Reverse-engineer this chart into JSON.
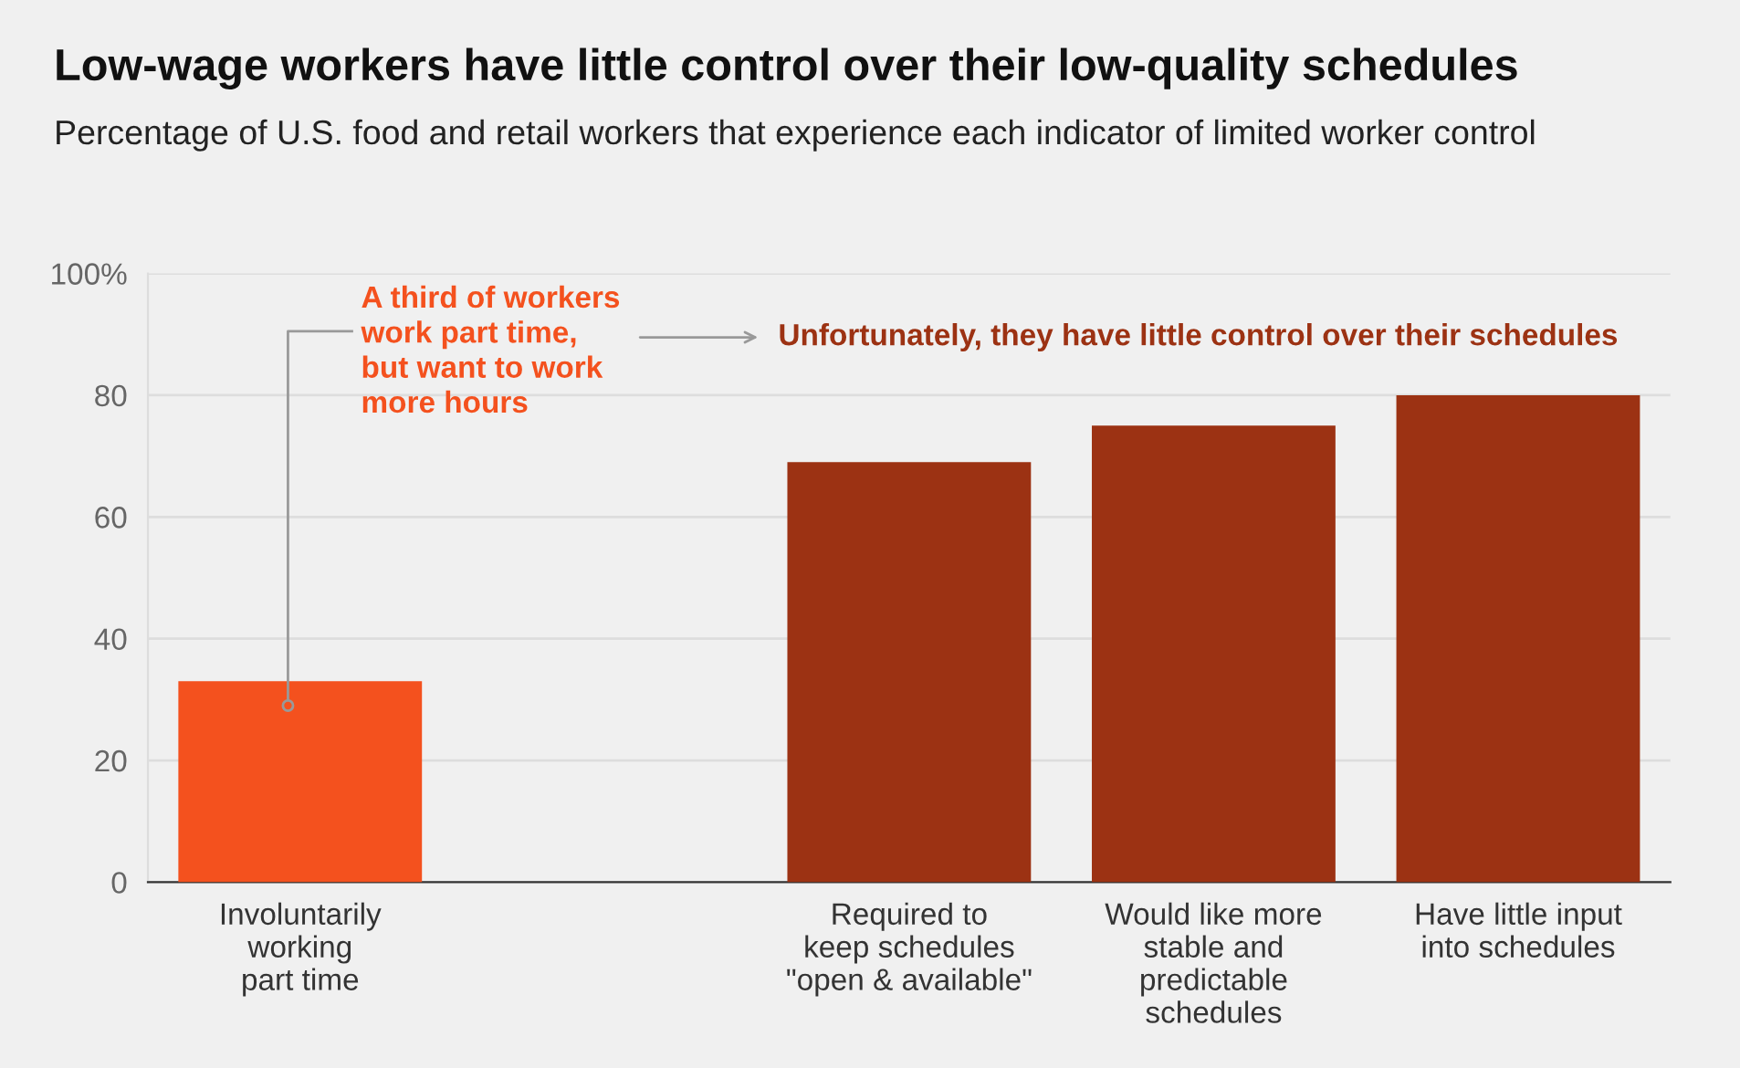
{
  "chart_data": {
    "type": "bar",
    "title": "Low-wage workers have little control over their low-quality schedules",
    "subtitle": "Percentage of U.S. food and retail workers that experience each indicator of limited worker control",
    "categories": [
      "Involuntarily\nworking\npart time",
      null,
      "Required to\nkeep schedules\n\"open & available\"",
      "Would like more\nstable and\npredictable\nschedules",
      "Have little input\ninto schedules"
    ],
    "values": [
      33,
      null,
      69,
      75,
      80
    ],
    "colors": [
      "#f4511e",
      "#9c3213",
      "#9c3213",
      "#9c3213",
      "#9c3213"
    ],
    "ylim": [
      0,
      100
    ],
    "yticks": [
      0,
      20,
      40,
      60,
      80,
      {
        "value": 100,
        "label": "100%"
      }
    ],
    "grid": "y",
    "annotations": [
      "A third of workers\nwork part time,\nbut want to work\nmore hours",
      "Unfortunately, they have little control over their schedules"
    ]
  }
}
